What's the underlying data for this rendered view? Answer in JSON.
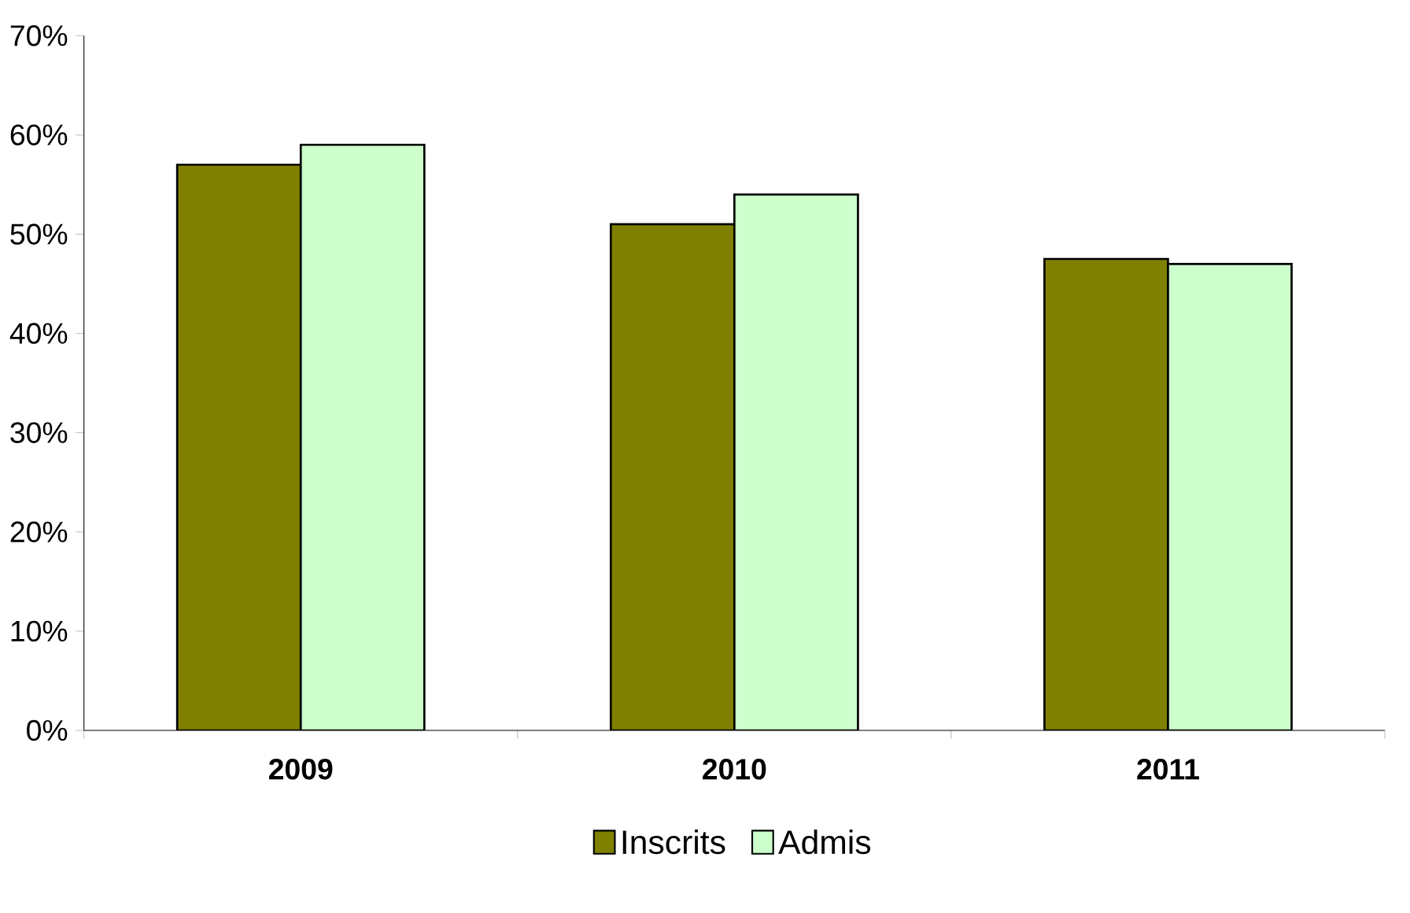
{
  "chart_data": {
    "type": "bar",
    "categories": [
      "2009",
      "2010",
      "2011"
    ],
    "series": [
      {
        "name": "Inscrits",
        "color": "#808000",
        "values": [
          57,
          51,
          47.5
        ]
      },
      {
        "name": "Admis",
        "color": "#ccffcc",
        "values": [
          59,
          54,
          47
        ]
      }
    ],
    "ylim": [
      0,
      70
    ],
    "yticks": [
      {
        "value": 0,
        "label": "0%"
      },
      {
        "value": 10,
        "label": "10%"
      },
      {
        "value": 20,
        "label": "20%"
      },
      {
        "value": 30,
        "label": "30%"
      },
      {
        "value": 40,
        "label": "40%"
      },
      {
        "value": 50,
        "label": "50%"
      },
      {
        "value": 60,
        "label": "60%"
      },
      {
        "value": 70,
        "label": "70%"
      }
    ],
    "legend": "bottom"
  }
}
